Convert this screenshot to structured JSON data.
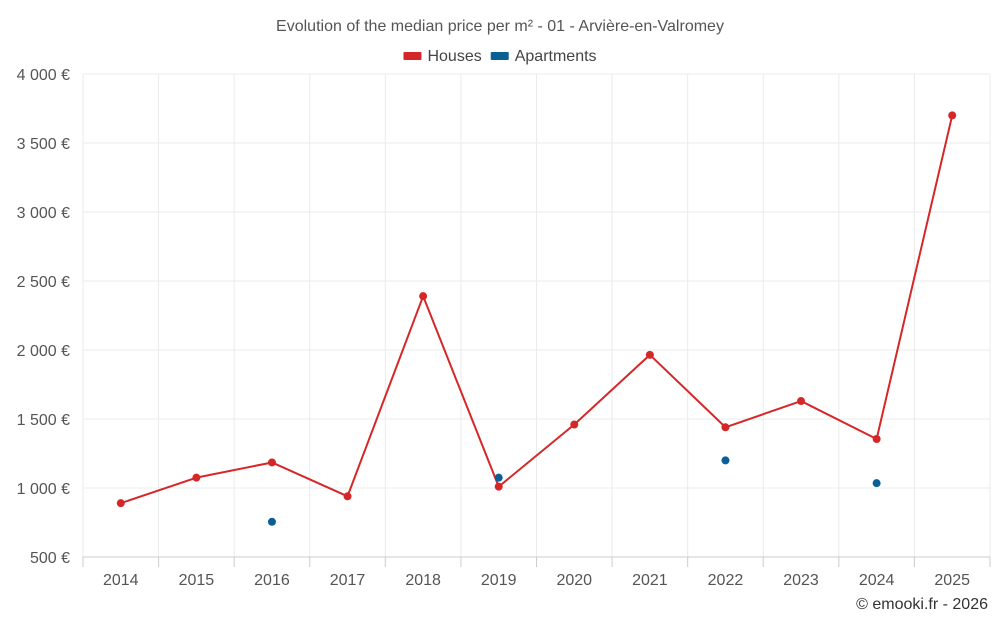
{
  "chart_data": {
    "type": "line",
    "title": "Evolution of the median price per m² - 01 - Arvière-en-Valromey",
    "categories": [
      "2014",
      "2015",
      "2016",
      "2017",
      "2018",
      "2019",
      "2020",
      "2021",
      "2022",
      "2023",
      "2024",
      "2025"
    ],
    "series": [
      {
        "name": "Houses",
        "color": "#d62728",
        "style": "line-with-markers",
        "values": [
          890,
          1075,
          1185,
          940,
          2390,
          1010,
          1460,
          1965,
          1440,
          1630,
          1355,
          3700
        ]
      },
      {
        "name": "Apartments",
        "color": "#0b5e96",
        "style": "markers-only",
        "values": [
          null,
          null,
          755,
          null,
          null,
          1075,
          null,
          null,
          1200,
          null,
          1035,
          null
        ]
      }
    ],
    "ylim": [
      500,
      4000
    ],
    "yticks": [
      500,
      1000,
      1500,
      2000,
      2500,
      3000,
      3500,
      4000
    ],
    "ytick_labels": [
      "500 €",
      "1 000 €",
      "1 500 €",
      "2 000 €",
      "2 500 €",
      "3 000 €",
      "3 500 €",
      "4 000 €"
    ],
    "xlabel": "",
    "ylabel": "",
    "grid": true,
    "legend_position": "top-center",
    "credit": "© emooki.fr - 2026"
  }
}
